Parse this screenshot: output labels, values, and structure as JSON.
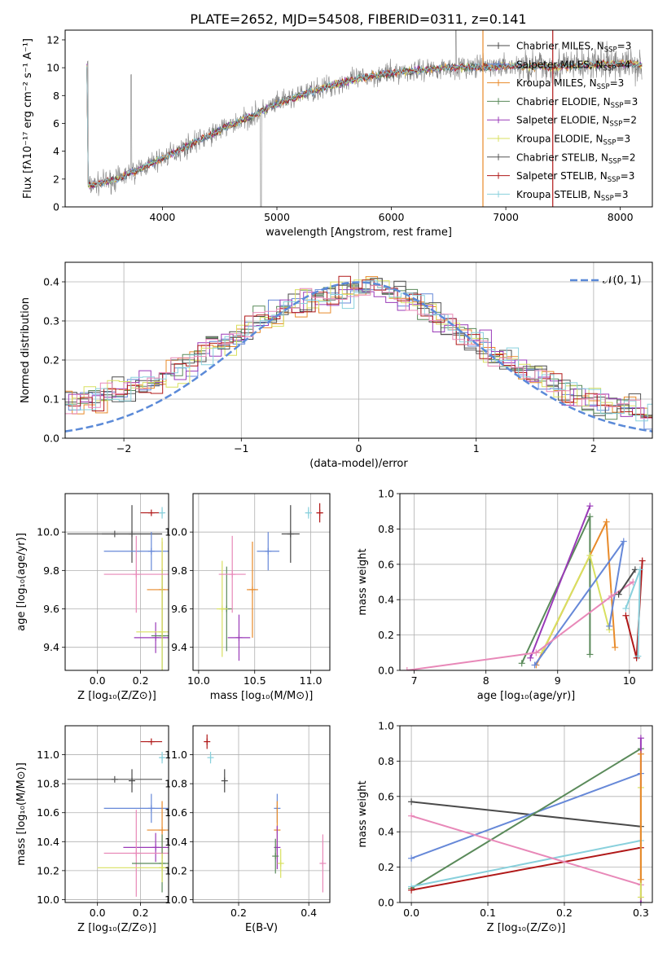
{
  "title": "PLATE=2652, MJD=54508, FIBERID=0311, z=0.141",
  "colors": {
    "Chabrier MILES": "#4a4a4a",
    "Salpeter MILES": "#6688d8",
    "Kroupa MILES": "#e88a2a",
    "Chabrier ELODIE": "#5a8a5a",
    "Salpeter ELODIE": "#9a3ab8",
    "Kroupa ELODIE": "#d8e060",
    "Chabrier STELIB": "#555555",
    "Salpeter STELIB": "#b01818",
    "Kroupa STELIB": "#88d0dc",
    "extra_pink": "#e888b8",
    "data_gray": "#808080",
    "gauss": "#5b8ad8"
  },
  "chart_data": [
    {
      "type": "line",
      "name": "spectrum",
      "xlabel": "wavelength [Angstrom, rest frame]",
      "ylabel": "Flux [fλ10⁻¹⁷ erg cm⁻² s⁻¹ A⁻¹]",
      "xlim": [
        3150,
        8280
      ],
      "ylim": [
        0,
        12.7
      ],
      "xticks": [
        4000,
        5000,
        6000,
        7000,
        8000
      ],
      "yticks": [
        0,
        2,
        4,
        6,
        8,
        10,
        12
      ],
      "legend_position": "top-right",
      "legend": [
        {
          "key": "Chabrier MILES",
          "label": "Chabrier MILES, N",
          "n": "3"
        },
        {
          "key": "Salpeter MILES",
          "label": "Salpeter MILES, N",
          "n": "4"
        },
        {
          "key": "Kroupa MILES",
          "label": "Kroupa MILES, N",
          "n": "3"
        },
        {
          "key": "Chabrier ELODIE",
          "label": "Chabrier ELODIE, N",
          "n": "3"
        },
        {
          "key": "Salpeter ELODIE",
          "label": "Salpeter ELODIE, N",
          "n": "2"
        },
        {
          "key": "Kroupa ELODIE",
          "label": "Kroupa ELODIE, N",
          "n": "3"
        },
        {
          "key": "Chabrier STELIB",
          "label": "Chabrier STELIB, N",
          "n": "2"
        },
        {
          "key": "Salpeter STELIB",
          "label": "Salpeter STELIB, N",
          "n": "3"
        },
        {
          "key": "Kroupa STELIB",
          "label": "Kroupa STELIB, N",
          "n": "3"
        }
      ],
      "legend_sub": "SSP",
      "continuum": [
        [
          3350,
          1.5
        ],
        [
          3600,
          2.0
        ],
        [
          3800,
          2.7
        ],
        [
          4000,
          3.5
        ],
        [
          4200,
          4.3
        ],
        [
          4500,
          5.5
        ],
        [
          4800,
          6.6
        ],
        [
          5000,
          7.4
        ],
        [
          5300,
          8.3
        ],
        [
          5600,
          9.0
        ],
        [
          5900,
          9.5
        ],
        [
          6200,
          9.8
        ],
        [
          6500,
          10.0
        ],
        [
          7000,
          10.1
        ],
        [
          7500,
          10.1
        ],
        [
          8000,
          10.3
        ],
        [
          8200,
          10.2
        ]
      ]
    },
    {
      "type": "bar",
      "name": "residuals",
      "xlabel": "(data-model)/error",
      "ylabel": "Normed distribution",
      "xlim": [
        -2.5,
        2.5
      ],
      "ylim": [
        0,
        0.45
      ],
      "xticks": [
        -2,
        -1,
        0,
        1,
        2
      ],
      "yticks": [
        0.0,
        0.1,
        0.2,
        0.3,
        0.4
      ],
      "legend": "𝒩(0, 1)",
      "legend_position": "top-right",
      "bin_width": 0.1,
      "mean_distribution": [
        0.05,
        0.06,
        0.07,
        0.08,
        0.085,
        0.09,
        0.1,
        0.105,
        0.11,
        0.12,
        0.13,
        0.14,
        0.15,
        0.165,
        0.18,
        0.2,
        0.22,
        0.235,
        0.25,
        0.265,
        0.28,
        0.3,
        0.315,
        0.33,
        0.34,
        0.35,
        0.36,
        0.37,
        0.375,
        0.38,
        0.39,
        0.385,
        0.37,
        0.36,
        0.35,
        0.33,
        0.31,
        0.29,
        0.27,
        0.25,
        0.23,
        0.21,
        0.195,
        0.18,
        0.165,
        0.15,
        0.135,
        0.12,
        0.11,
        0.1,
        0.09,
        0.08,
        0.075,
        0.07,
        0.06,
        0.055,
        0.05,
        0.045,
        0.04,
        0.035
      ]
    },
    {
      "type": "scatter",
      "name": "age-vs-Z",
      "xlabel": "Z [log₁₀(Z/Z⊙)]",
      "ylabel": "age  [log₁₀(age/yr)]",
      "xlim": [
        -0.15,
        0.33
      ],
      "ylim": [
        9.28,
        10.2
      ],
      "xticks": [
        0.0,
        0.2
      ],
      "yticks": [
        9.4,
        9.6,
        9.8,
        10.0
      ],
      "points": [
        {
          "key": "Chabrier MILES",
          "x": 0.16,
          "y": 9.99,
          "xerr": 0.14,
          "yerr": 0.15
        },
        {
          "key": "Chabrier STELIB",
          "x": 0.08,
          "y": 9.99,
          "xerr": 0.22,
          "yerr": 0.0
        },
        {
          "key": "Salpeter MILES",
          "x": 0.25,
          "y": 9.9,
          "xerr": 0.22,
          "yerr": 0.1
        },
        {
          "key": "Kroupa MILES",
          "x": 0.3,
          "y": 9.7,
          "xerr": 0.07,
          "yerr": 0.25
        },
        {
          "key": "Salpeter STELIB",
          "x": 0.25,
          "y": 10.1,
          "xerr": 0.05,
          "yerr": 0.0
        },
        {
          "key": "Kroupa STELIB",
          "x": 0.3,
          "y": 10.1,
          "xerr": 0.01,
          "yerr": 0.03
        },
        {
          "key": "Salpeter ELODIE",
          "x": 0.27,
          "y": 9.45,
          "xerr": 0.1,
          "yerr": 0.08
        },
        {
          "key": "Chabrier ELODIE",
          "x": 0.3,
          "y": 9.46,
          "xerr": 0.05,
          "yerr": 0.35
        },
        {
          "key": "Kroupa ELODIE",
          "x": 0.3,
          "y": 9.48,
          "xerr": 0.12,
          "yerr": 0.49
        },
        {
          "key": "extra_pink",
          "x": 0.18,
          "y": 9.78,
          "xerr": 0.15,
          "yerr": 0.2
        }
      ]
    },
    {
      "type": "scatter",
      "name": "age-vs-mass",
      "xlabel": "mass [log₁₀(M/M⊙)]",
      "ylabel": "",
      "xlim": [
        9.95,
        11.17
      ],
      "ylim": [
        9.28,
        10.2
      ],
      "xticks": [
        10.0,
        10.5,
        11.0
      ],
      "yticks": [
        9.4,
        9.6,
        9.8,
        10.0
      ],
      "points": [
        {
          "key": "Chabrier MILES",
          "x": 10.82,
          "y": 9.99,
          "xerr": 0.08,
          "yerr": 0.15
        },
        {
          "key": "Salpeter MILES",
          "x": 10.62,
          "y": 9.9,
          "xerr": 0.1,
          "yerr": 0.1
        },
        {
          "key": "Kroupa MILES",
          "x": 10.48,
          "y": 9.7,
          "xerr": 0.05,
          "yerr": 0.25
        },
        {
          "key": "Salpeter STELIB",
          "x": 11.08,
          "y": 10.1,
          "xerr": 0.03,
          "yerr": 0.05
        },
        {
          "key": "Kroupa STELIB",
          "x": 10.98,
          "y": 10.1,
          "xerr": 0.03,
          "yerr": 0.03
        },
        {
          "key": "Salpeter ELODIE",
          "x": 10.36,
          "y": 9.45,
          "xerr": 0.1,
          "yerr": 0.12
        },
        {
          "key": "Chabrier ELODIE",
          "x": 10.25,
          "y": 9.6,
          "xerr": 0.05,
          "yerr": 0.22
        },
        {
          "key": "Kroupa ELODIE",
          "x": 10.21,
          "y": 9.6,
          "xerr": 0.05,
          "yerr": 0.25
        },
        {
          "key": "extra_pink",
          "x": 10.3,
          "y": 9.78,
          "xerr": 0.12,
          "yerr": 0.2
        }
      ]
    },
    {
      "type": "line",
      "name": "weight-vs-age",
      "xlabel": "age  [log₁₀(age/yr)]",
      "ylabel": "mass weight",
      "xlim": [
        6.8,
        10.32
      ],
      "ylim": [
        0,
        1.0
      ],
      "xticks": [
        7,
        8,
        9,
        10
      ],
      "yticks": [
        0.0,
        0.2,
        0.4,
        0.6,
        0.8,
        1.0
      ],
      "series": [
        {
          "key": "Chabrier ELODIE",
          "points": [
            [
              8.5,
              0.04
            ],
            [
              9.45,
              0.87
            ],
            [
              9.45,
              0.09
            ]
          ]
        },
        {
          "key": "Salpeter ELODIE",
          "points": [
            [
              8.62,
              0.07
            ],
            [
              9.45,
              0.93
            ]
          ]
        },
        {
          "key": "Kroupa MILES",
          "points": [
            [
              8.7,
              0.03
            ],
            [
              9.68,
              0.84
            ],
            [
              9.8,
              0.13
            ]
          ]
        },
        {
          "key": "Kroupa ELODIE",
          "points": [
            [
              8.78,
              0.1
            ],
            [
              9.45,
              0.65
            ],
            [
              9.72,
              0.23
            ]
          ]
        },
        {
          "key": "Salpeter MILES",
          "points": [
            [
              8.68,
              0.03
            ],
            [
              9.92,
              0.73
            ],
            [
              9.72,
              0.25
            ]
          ]
        },
        {
          "key": "extra_pink",
          "points": [
            [
              6.9,
              0.0
            ],
            [
              8.7,
              0.1
            ],
            [
              9.75,
              0.42
            ],
            [
              10.05,
              0.5
            ]
          ]
        },
        {
          "key": "Chabrier MILES",
          "points": [
            [
              9.85,
              0.43
            ],
            [
              10.08,
              0.57
            ]
          ]
        },
        {
          "key": "Salpeter STELIB",
          "points": [
            [
              9.95,
              0.31
            ],
            [
              10.1,
              0.07
            ],
            [
              10.18,
              0.62
            ]
          ]
        },
        {
          "key": "Kroupa STELIB",
          "points": [
            [
              9.95,
              0.35
            ],
            [
              10.15,
              0.57
            ],
            [
              10.12,
              0.08
            ]
          ]
        }
      ]
    },
    {
      "type": "scatter",
      "name": "mass-vs-Z",
      "xlabel": "Z [log₁₀(Z/Z⊙)]",
      "ylabel": "mass [log₁₀(M/M⊙)]",
      "xlim": [
        -0.15,
        0.33
      ],
      "ylim": [
        9.98,
        11.2
      ],
      "xticks": [
        0.0,
        0.2
      ],
      "yticks": [
        10.0,
        10.2,
        10.4,
        10.6,
        10.8,
        11.0
      ],
      "points": [
        {
          "key": "Salpeter STELIB",
          "x": 0.25,
          "y": 11.09,
          "xerr": 0.05,
          "yerr": 0.0
        },
        {
          "key": "Kroupa STELIB",
          "x": 0.3,
          "y": 10.98,
          "xerr": 0.01,
          "yerr": 0.04
        },
        {
          "key": "Chabrier STELIB",
          "x": 0.08,
          "y": 10.83,
          "xerr": 0.22,
          "yerr": 0.0
        },
        {
          "key": "Chabrier MILES",
          "x": 0.16,
          "y": 10.82,
          "xerr": 0.0,
          "yerr": 0.08
        },
        {
          "key": "Salpeter MILES",
          "x": 0.25,
          "y": 10.63,
          "xerr": 0.22,
          "yerr": 0.1
        },
        {
          "key": "Kroupa MILES",
          "x": 0.3,
          "y": 10.48,
          "xerr": 0.07,
          "yerr": 0.2
        },
        {
          "key": "Salpeter ELODIE",
          "x": 0.27,
          "y": 10.36,
          "xerr": 0.15,
          "yerr": 0.1
        },
        {
          "key": "extra_pink",
          "x": 0.18,
          "y": 10.32,
          "xerr": 0.15,
          "yerr": 0.3
        },
        {
          "key": "Chabrier ELODIE",
          "x": 0.3,
          "y": 10.25,
          "xerr": 0.14,
          "yerr": 0.2
        },
        {
          "key": "Kroupa ELODIE",
          "x": 0.3,
          "y": 10.22,
          "xerr": 0.3,
          "yerr": 0.1
        }
      ]
    },
    {
      "type": "scatter",
      "name": "mass-vs-EBV",
      "xlabel": "E(B-V)",
      "ylabel": "",
      "xlim": [
        0.07,
        0.46
      ],
      "ylim": [
        9.98,
        11.2
      ],
      "xticks": [
        0.2,
        0.4
      ],
      "yticks": [
        10.0,
        10.2,
        10.4,
        10.6,
        10.8,
        11.0
      ],
      "points": [
        {
          "key": "Salpeter STELIB",
          "x": 0.11,
          "y": 11.09,
          "xerr": 0.0,
          "yerr": 0.05
        },
        {
          "key": "Kroupa STELIB",
          "x": 0.12,
          "y": 10.98,
          "xerr": 0.0,
          "yerr": 0.04
        },
        {
          "key": "Chabrier MILES",
          "x": 0.16,
          "y": 10.82,
          "xerr": 0.0,
          "yerr": 0.08
        },
        {
          "key": "Salpeter MILES",
          "x": 0.31,
          "y": 10.63,
          "xerr": 0.0,
          "yerr": 0.1
        },
        {
          "key": "Kroupa MILES",
          "x": 0.31,
          "y": 10.48,
          "xerr": 0.0,
          "yerr": 0.2
        },
        {
          "key": "Salpeter ELODIE",
          "x": 0.31,
          "y": 10.36,
          "xerr": 0.0,
          "yerr": 0.15
        },
        {
          "key": "Chabrier ELODIE",
          "x": 0.305,
          "y": 10.3,
          "xerr": 0.0,
          "yerr": 0.12
        },
        {
          "key": "Kroupa ELODIE",
          "x": 0.32,
          "y": 10.25,
          "xerr": 0.0,
          "yerr": 0.1
        },
        {
          "key": "extra_pink",
          "x": 0.44,
          "y": 10.25,
          "xerr": 0.0,
          "yerr": 0.2
        }
      ]
    },
    {
      "type": "line",
      "name": "weight-vs-Z",
      "xlabel": "Z [log₁₀(Z/Z⊙)]",
      "ylabel": "mass weight",
      "xlim": [
        -0.015,
        0.315
      ],
      "ylim": [
        0,
        1.0
      ],
      "xticks": [
        0.0,
        0.1,
        0.2,
        0.3
      ],
      "yticks": [
        0.0,
        0.2,
        0.4,
        0.6,
        0.8,
        1.0
      ],
      "series": [
        {
          "key": "Chabrier MILES",
          "points": [
            [
              0.0,
              0.57
            ],
            [
              0.3,
              0.43
            ]
          ]
        },
        {
          "key": "Salpeter MILES",
          "points": [
            [
              0.0,
              0.25
            ],
            [
              0.3,
              0.73
            ]
          ]
        },
        {
          "key": "Chabrier ELODIE",
          "points": [
            [
              0.0,
              0.08
            ],
            [
              0.3,
              0.87
            ]
          ]
        },
        {
          "key": "Kroupa STELIB",
          "points": [
            [
              0.0,
              0.09
            ],
            [
              0.3,
              0.35
            ]
          ]
        },
        {
          "key": "Salpeter STELIB",
          "points": [
            [
              0.0,
              0.07
            ],
            [
              0.3,
              0.31
            ]
          ]
        },
        {
          "key": "extra_pink",
          "points": [
            [
              0.0,
              0.49
            ],
            [
              0.3,
              0.1
            ]
          ]
        },
        {
          "key": "Salpeter ELODIE",
          "points": [
            [
              0.3,
              0.0
            ],
            [
              0.3,
              0.93
            ]
          ]
        },
        {
          "key": "Kroupa ELODIE",
          "points": [
            [
              0.3,
              0.03
            ],
            [
              0.3,
              0.65
            ]
          ]
        },
        {
          "key": "Kroupa MILES",
          "points": [
            [
              0.3,
              0.13
            ],
            [
              0.3,
              0.84
            ]
          ]
        }
      ]
    }
  ]
}
